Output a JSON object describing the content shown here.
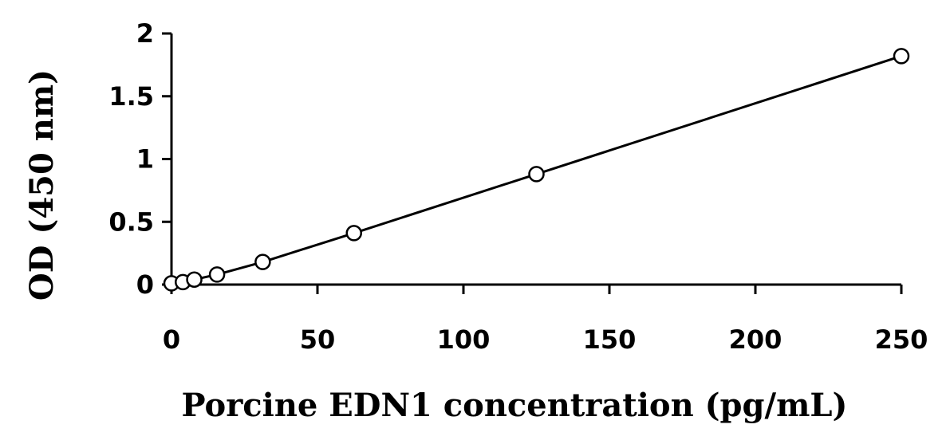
{
  "chart_data": {
    "type": "scatter",
    "title": "",
    "xlabel": "Porcine EDN1 concentration (pg/mL)",
    "ylabel": "OD (450 nm)",
    "xlim": [
      0,
      250
    ],
    "ylim": [
      0,
      2
    ],
    "xticks": [
      "0",
      "50",
      "100",
      "150",
      "200",
      "250"
    ],
    "yticks": [
      "0",
      "0.5",
      "1",
      "1.5",
      "2"
    ],
    "grid": false,
    "legend": "none",
    "trendline": "linear",
    "series": [
      {
        "x": [
          0,
          3.9,
          7.8,
          15.6,
          31.25,
          62.5,
          125,
          250
        ],
        "y": [
          0.01,
          0.02,
          0.04,
          0.08,
          0.18,
          0.41,
          0.88,
          1.82
        ]
      }
    ],
    "colors": {
      "line": "#000000",
      "marker_fill": "#ffffff",
      "marker_stroke": "#000000"
    }
  }
}
